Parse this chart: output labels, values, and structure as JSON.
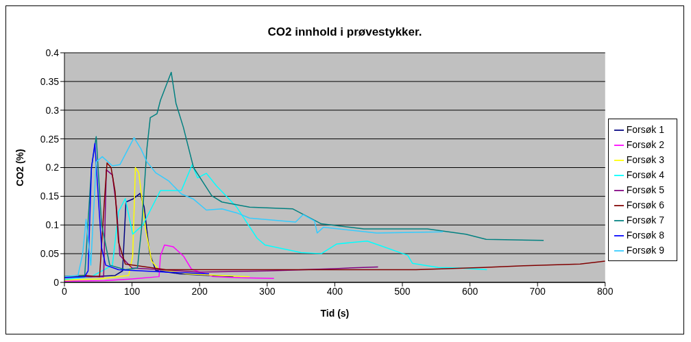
{
  "chart_data": {
    "type": "line",
    "title": "CO2 innhold i prøvestykker.",
    "xlabel": "Tid (s)",
    "ylabel": "CO2 (%)",
    "xlim": [
      0,
      800
    ],
    "xticks": [
      0,
      100,
      200,
      300,
      400,
      500,
      600,
      700,
      800
    ],
    "ylim": [
      0,
      0.4
    ],
    "yticks": [
      0,
      0.05,
      0.1,
      0.15,
      0.2,
      0.25,
      0.3,
      0.35,
      0.4
    ],
    "grid": "y",
    "legend": "right",
    "marker": "none",
    "line_style": "solid",
    "series": [
      {
        "name": "Forsøk 1",
        "color": "#000080",
        "x": [
          0,
          40,
          75,
          86,
          91,
          101,
          112,
          118,
          126,
          135,
          170,
          214,
          250
        ],
        "values": [
          0.01,
          0.01,
          0.012,
          0.02,
          0.14,
          0.145,
          0.155,
          0.131,
          0.051,
          0.021,
          0.015,
          0.012,
          0.01
        ]
      },
      {
        "name": "Forsøk 2",
        "color": "#ff00ff",
        "x": [
          0,
          60,
          100,
          140,
          142,
          148,
          161,
          176,
          188,
          220,
          260,
          310
        ],
        "values": [
          0.002,
          0.003,
          0.006,
          0.01,
          0.046,
          0.065,
          0.062,
          0.046,
          0.023,
          0.01,
          0.008,
          0.007
        ]
      },
      {
        "name": "Forsøk 3",
        "color": "#ffff00",
        "x": [
          0,
          50,
          95,
          101,
          105,
          110,
          120,
          129,
          139,
          180,
          230,
          274
        ],
        "values": [
          0.004,
          0.006,
          0.012,
          0.046,
          0.2,
          0.191,
          0.093,
          0.037,
          0.023,
          0.015,
          0.012,
          0.01
        ]
      },
      {
        "name": "Forsøk 4",
        "color": "#00ffff",
        "x": [
          0,
          40,
          71,
          80,
          90,
          101,
          116,
          142,
          173,
          189,
          197,
          210,
          225,
          255,
          285,
          297,
          350,
          380,
          403,
          448,
          470,
          508,
          515,
          553,
          583,
          625
        ],
        "values": [
          0.005,
          0.01,
          0.03,
          0.123,
          0.146,
          0.084,
          0.1,
          0.16,
          0.16,
          0.205,
          0.182,
          0.19,
          0.168,
          0.131,
          0.077,
          0.065,
          0.052,
          0.05,
          0.067,
          0.072,
          0.063,
          0.047,
          0.033,
          0.026,
          0.025,
          0.022
        ]
      },
      {
        "name": "Forsøk 5",
        "color": "#800080",
        "x": [
          0,
          40,
          58,
          62,
          71,
          77,
          82,
          100,
          200,
          300,
          400,
          464
        ],
        "values": [
          0.01,
          0.01,
          0.01,
          0.196,
          0.187,
          0.131,
          0.047,
          0.025,
          0.018,
          0.02,
          0.024,
          0.027
        ]
      },
      {
        "name": "Forsøk 6",
        "color": "#800000",
        "x": [
          0,
          30,
          52,
          59,
          63,
          69,
          75,
          80,
          90,
          150,
          300,
          520,
          620,
          680,
          763,
          800
        ],
        "values": [
          0.01,
          0.012,
          0.01,
          0.14,
          0.208,
          0.2,
          0.158,
          0.07,
          0.032,
          0.022,
          0.022,
          0.022,
          0.026,
          0.029,
          0.032,
          0.037
        ]
      },
      {
        "name": "Forsøk 7",
        "color": "#008080",
        "x": [
          0,
          30,
          40,
          47,
          55,
          67,
          90,
          108,
          114,
          122,
          127,
          137,
          142,
          158,
          165,
          176,
          191,
          218,
          233,
          274,
          338,
          380,
          443,
          537,
          594,
          624,
          709
        ],
        "values": [
          0.01,
          0.012,
          0.2,
          0.254,
          0.1,
          0.03,
          0.022,
          0.025,
          0.093,
          0.233,
          0.287,
          0.294,
          0.317,
          0.366,
          0.312,
          0.27,
          0.2,
          0.151,
          0.14,
          0.131,
          0.128,
          0.102,
          0.093,
          0.093,
          0.084,
          0.075,
          0.073
        ]
      },
      {
        "name": "Forsøk 8",
        "color": "#0000ff",
        "x": [
          0,
          30,
          35,
          40,
          45,
          50,
          55,
          61,
          80,
          150,
          214
        ],
        "values": [
          0.008,
          0.01,
          0.02,
          0.2,
          0.242,
          0.15,
          0.06,
          0.03,
          0.022,
          0.018,
          0.015
        ]
      },
      {
        "name": "Forsøk 9",
        "color": "#33ccff",
        "x": [
          0,
          20,
          27,
          32,
          39,
          47,
          56,
          71,
          82,
          103,
          113,
          122,
          135,
          154,
          173,
          191,
          210,
          233,
          255,
          274,
          342,
          353,
          370,
          374,
          383,
          462,
          560
        ],
        "values": [
          0.01,
          0.012,
          0.05,
          0.11,
          0.03,
          0.21,
          0.219,
          0.203,
          0.205,
          0.252,
          0.233,
          0.21,
          0.191,
          0.177,
          0.154,
          0.145,
          0.126,
          0.128,
          0.121,
          0.112,
          0.105,
          0.118,
          0.107,
          0.086,
          0.096,
          0.086,
          0.088
        ]
      }
    ]
  }
}
